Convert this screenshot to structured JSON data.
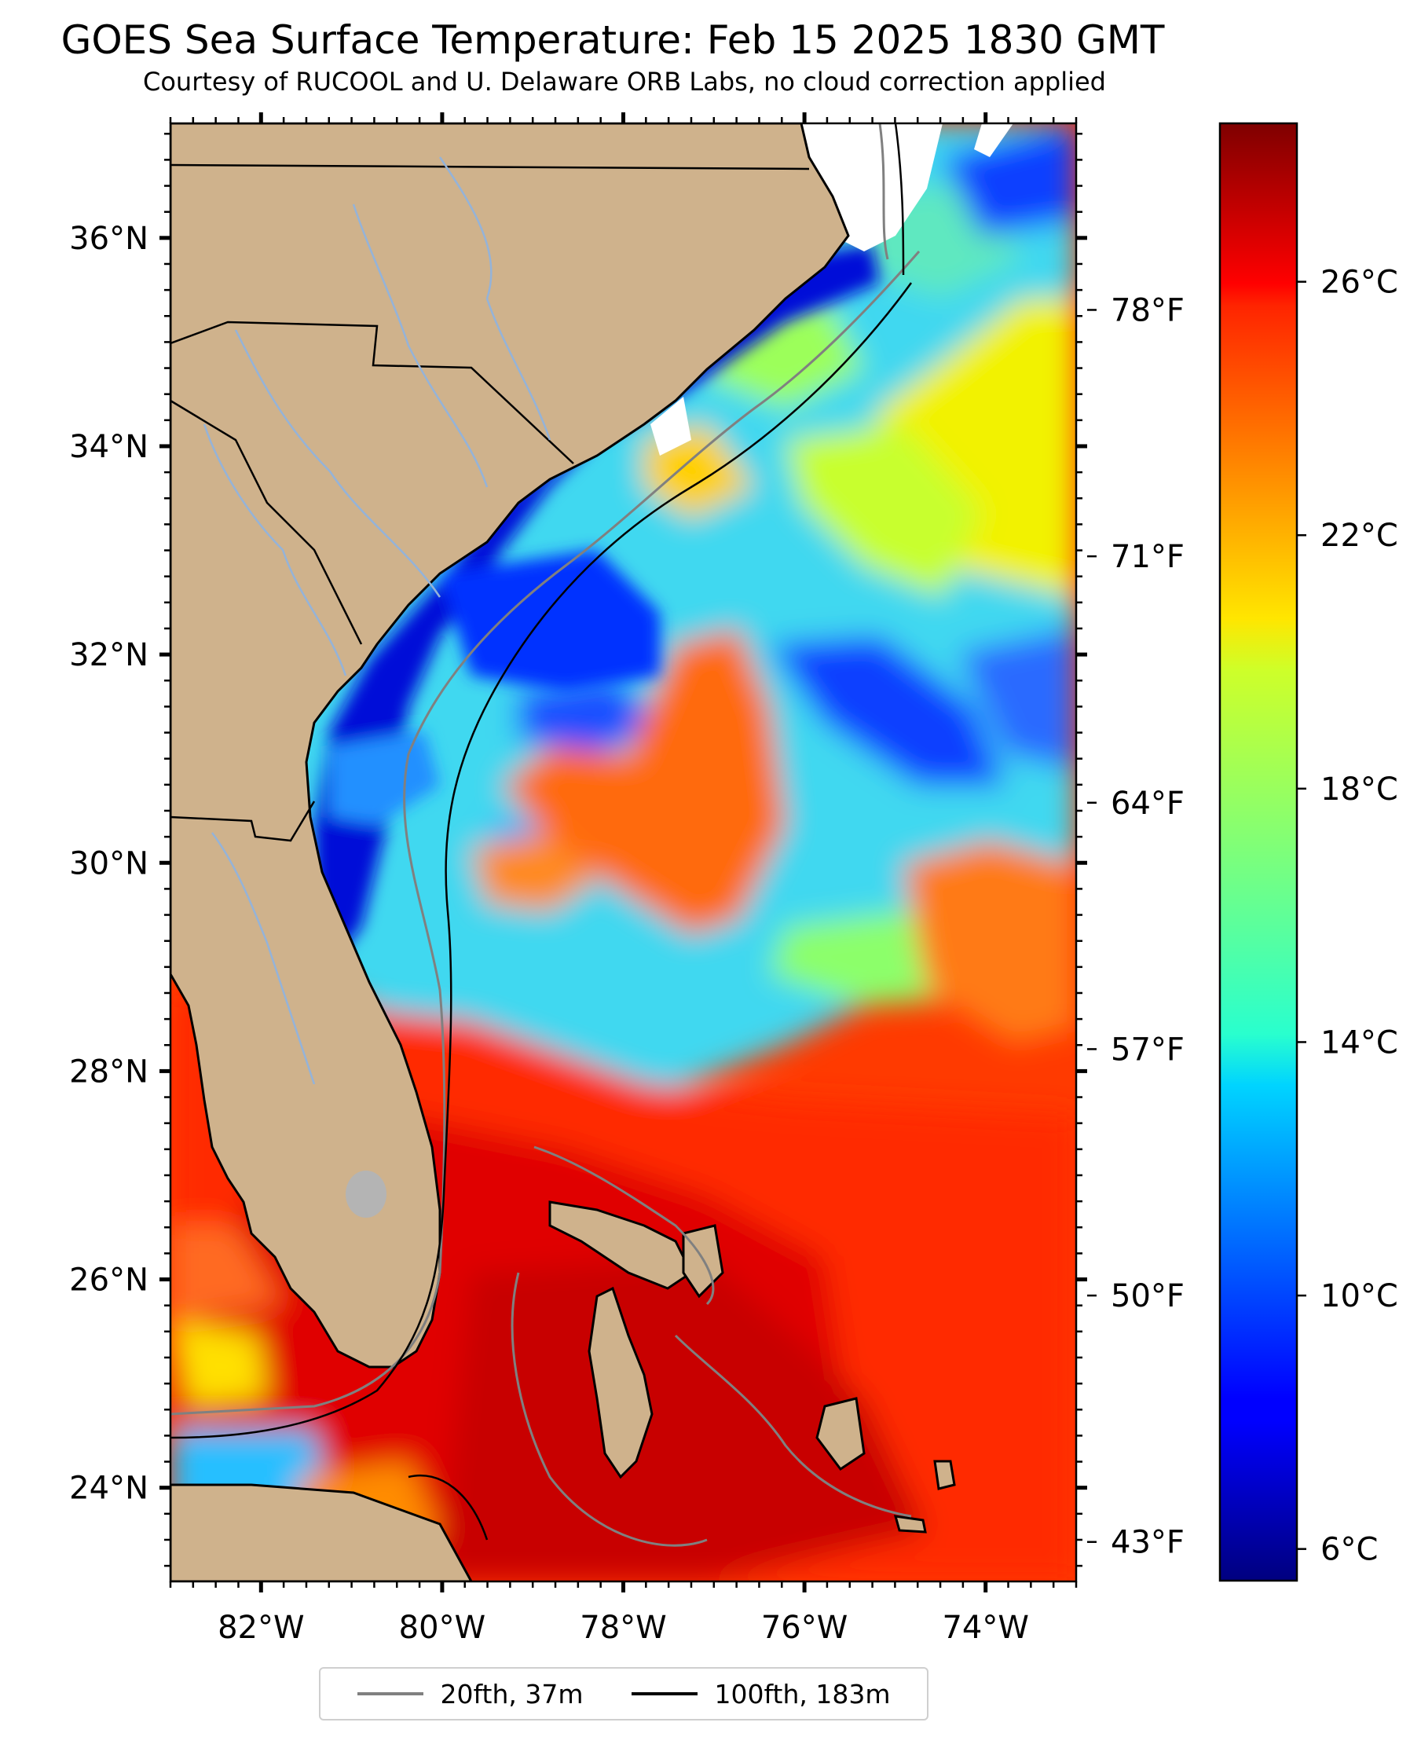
{
  "title": "GOES Sea Surface Temperature: Feb 15 2025 1830 GMT",
  "subtitle": "Courtesy of RUCOOL and U. Delaware ORB Labs, no cloud correction applied",
  "map": {
    "lon_range": [
      -83,
      -73
    ],
    "lat_range": [
      23.1,
      37.1
    ],
    "land_color": "#cfb28c",
    "coast_color": "#000000",
    "river_color": "#94b3d9",
    "lon_ticks": [
      {
        "value": -82,
        "label": "82°W"
      },
      {
        "value": -80,
        "label": "80°W"
      },
      {
        "value": -78,
        "label": "78°W"
      },
      {
        "value": -76,
        "label": "76°W"
      },
      {
        "value": -74,
        "label": "74°W"
      }
    ],
    "lat_ticks": [
      {
        "value": 24,
        "label": "24°N"
      },
      {
        "value": 26,
        "label": "26°N"
      },
      {
        "value": 28,
        "label": "28°N"
      },
      {
        "value": 30,
        "label": "30°N"
      },
      {
        "value": 32,
        "label": "32°N"
      },
      {
        "value": 34,
        "label": "34°N"
      },
      {
        "value": 36,
        "label": "36°N"
      }
    ]
  },
  "colorbar": {
    "colormap": "jet",
    "range_c": [
      5.5,
      28.5
    ],
    "celsius_ticks": [
      {
        "value": 6,
        "label": "6°C"
      },
      {
        "value": 10,
        "label": "10°C"
      },
      {
        "value": 14,
        "label": "14°C"
      },
      {
        "value": 18,
        "label": "18°C"
      },
      {
        "value": 22,
        "label": "22°C"
      },
      {
        "value": 26,
        "label": "26°C"
      }
    ],
    "fahrenheit_ticks": [
      {
        "value": 43,
        "label": "43°F"
      },
      {
        "value": 50,
        "label": "50°F"
      },
      {
        "value": 57,
        "label": "57°F"
      },
      {
        "value": 64,
        "label": "64°F"
      },
      {
        "value": 71,
        "label": "71°F"
      },
      {
        "value": 78,
        "label": "78°F"
      }
    ]
  },
  "legend": {
    "items": [
      {
        "label": "20fth, 37m",
        "color": "#808080"
      },
      {
        "label": "100fth, 183m",
        "color": "#000000"
      }
    ]
  }
}
